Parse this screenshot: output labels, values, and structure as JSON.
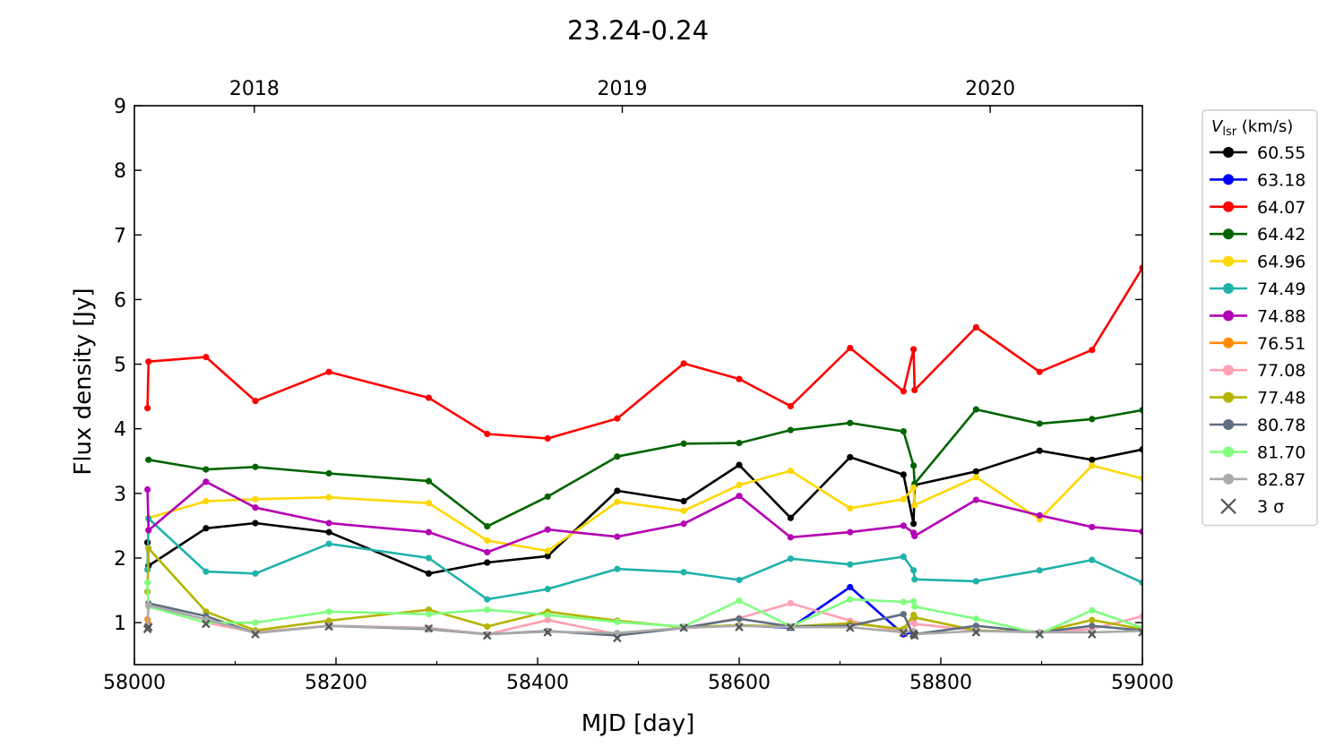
{
  "chart_data": {
    "type": "line",
    "title": "23.24-0.24",
    "xlabel": "MJD [day]",
    "ylabel": "Flux density [Jy]",
    "xlim": [
      58000,
      59000
    ],
    "ylim": [
      0.35,
      9
    ],
    "x_ticks": [
      "58000",
      "58200",
      "58400",
      "58600",
      "58800",
      "59000"
    ],
    "y_ticks": [
      "1",
      "2",
      "3",
      "4",
      "5",
      "6",
      "7",
      "8",
      "9"
    ],
    "top_axis_labels": [
      {
        "label": "2018",
        "mjd": 58119
      },
      {
        "label": "2019",
        "mjd": 58484
      },
      {
        "label": "2020",
        "mjd": 58849
      }
    ],
    "grid": false,
    "legend": {
      "position": "right-top",
      "title_symbol": "V",
      "title_subscript": "lsr",
      "title_unit": "(km/s)",
      "sigma_label": "3 σ"
    },
    "series": [
      {
        "name": "60.55",
        "color": "#000000",
        "x": [
          58013,
          58014,
          58071,
          58120,
          58193,
          58292,
          58350,
          58410,
          58479,
          58545,
          58600,
          58651,
          58710,
          58763,
          58773,
          58774,
          58835,
          58898,
          58950,
          59000
        ],
        "y": [
          2.24,
          1.88,
          2.46,
          2.54,
          2.4,
          1.76,
          1.93,
          2.03,
          3.04,
          2.88,
          3.44,
          2.62,
          3.56,
          3.29,
          2.53,
          3.13,
          3.34,
          3.66,
          3.52,
          3.68
        ]
      },
      {
        "name": "63.18",
        "color": "#0000ff",
        "x": [
          58545,
          58600,
          58651,
          58710,
          58763,
          58773
        ],
        "y": [
          0.92,
          0.96,
          0.92,
          1.55,
          0.82,
          0.85
        ]
      },
      {
        "name": "64.07",
        "color": "#ff0000",
        "x": [
          58013,
          58014,
          58071,
          58120,
          58193,
          58292,
          58350,
          58410,
          58479,
          58545,
          58600,
          58651,
          58710,
          58763,
          58773,
          58774,
          58835,
          58898,
          58950,
          59000
        ],
        "y": [
          4.32,
          5.04,
          5.11,
          4.43,
          4.88,
          4.48,
          3.92,
          3.85,
          4.16,
          5.01,
          4.77,
          4.35,
          5.25,
          4.58,
          5.23,
          4.6,
          5.57,
          4.88,
          5.22,
          6.49
        ]
      },
      {
        "name": "64.42",
        "color": "#006400",
        "x": [
          58014,
          58071,
          58120,
          58193,
          58292,
          58350,
          58410,
          58479,
          58545,
          58600,
          58651,
          58710,
          58763,
          58773,
          58774,
          58835,
          58898,
          58950,
          59000
        ],
        "y": [
          3.52,
          3.37,
          3.41,
          3.31,
          3.19,
          2.49,
          2.95,
          3.57,
          3.77,
          3.78,
          3.98,
          4.09,
          3.96,
          3.43,
          3.15,
          4.3,
          4.08,
          4.15,
          4.29
        ]
      },
      {
        "name": "64.96",
        "color": "#ffd700",
        "x": [
          58014,
          58071,
          58120,
          58193,
          58292,
          58350,
          58410,
          58479,
          58545,
          58600,
          58651,
          58710,
          58763,
          58773,
          58774,
          58835,
          58898,
          58950,
          59000
        ],
        "y": [
          2.62,
          2.88,
          2.91,
          2.94,
          2.85,
          2.27,
          2.11,
          2.87,
          2.73,
          3.13,
          3.35,
          2.77,
          2.91,
          3.09,
          2.82,
          3.25,
          2.6,
          3.43,
          3.23
        ]
      },
      {
        "name": "74.49",
        "color": "#20b2aa",
        "x": [
          58013,
          58014,
          58071,
          58120,
          58193,
          58292,
          58350,
          58410,
          58479,
          58545,
          58600,
          58651,
          58710,
          58763,
          58773,
          58774,
          58835,
          58898,
          58950,
          59000
        ],
        "y": [
          1.82,
          2.61,
          1.79,
          1.76,
          2.22,
          2.0,
          1.36,
          1.52,
          1.83,
          1.78,
          1.66,
          1.99,
          1.9,
          2.02,
          1.81,
          1.67,
          1.64,
          1.81,
          1.97,
          1.62
        ]
      },
      {
        "name": "74.88",
        "color": "#b400b4",
        "x": [
          58013,
          58014,
          58071,
          58120,
          58193,
          58292,
          58350,
          58410,
          58479,
          58545,
          58600,
          58651,
          58710,
          58763,
          58773,
          58774,
          58835,
          58898,
          58950,
          59000
        ],
        "y": [
          3.06,
          2.43,
          3.18,
          2.78,
          2.54,
          2.4,
          2.09,
          2.44,
          2.33,
          2.53,
          2.96,
          2.32,
          2.4,
          2.5,
          2.39,
          2.34,
          2.9,
          2.66,
          2.48,
          2.41
        ]
      },
      {
        "name": "76.51",
        "color": "#ff8c00",
        "x": [
          58013,
          58014
        ],
        "y": [
          1.05,
          0.98
        ]
      },
      {
        "name": "77.08",
        "color": "#ffa0b4",
        "x": [
          58014,
          58071,
          58120,
          58193,
          58292,
          58350,
          58410,
          58479,
          58545,
          58600,
          58651,
          58710,
          58763,
          58773,
          58774,
          58835,
          58898,
          58950,
          59000
        ],
        "y": [
          1.25,
          1.0,
          0.85,
          0.95,
          0.92,
          0.82,
          1.04,
          0.82,
          0.92,
          1.07,
          1.3,
          1.03,
          0.85,
          1.04,
          0.98,
          0.88,
          0.85,
          0.9,
          1.1
        ]
      },
      {
        "name": "77.48",
        "color": "#b4b400",
        "x": [
          58013,
          58014,
          58071,
          58120,
          58193,
          58292,
          58350,
          58410,
          58479,
          58545,
          58600,
          58651,
          58710,
          58763,
          58773,
          58774,
          58835,
          58898,
          58950,
          59000
        ],
        "y": [
          1.48,
          2.15,
          1.17,
          0.88,
          1.03,
          1.2,
          0.94,
          1.17,
          1.03,
          0.93,
          0.96,
          0.94,
          0.99,
          0.9,
          1.12,
          1.08,
          0.88,
          0.85,
          1.04,
          0.9
        ]
      },
      {
        "name": "80.78",
        "color": "#5f6f80",
        "x": [
          58014,
          58071,
          58120,
          58193,
          58292,
          58350,
          58410,
          58479,
          58545,
          58600,
          58651,
          58710,
          58763,
          58773,
          58774,
          58835,
          58898,
          58950,
          59000
        ],
        "y": [
          1.3,
          1.1,
          0.84,
          0.95,
          0.9,
          0.82,
          0.87,
          0.8,
          0.92,
          1.06,
          0.94,
          0.95,
          1.13,
          0.8,
          0.82,
          0.95,
          0.85,
          0.95,
          0.88
        ]
      },
      {
        "name": "81.70",
        "color": "#80ff80",
        "x": [
          58013,
          58014,
          58071,
          58120,
          58193,
          58292,
          58350,
          58410,
          58479,
          58545,
          58600,
          58651,
          58710,
          58763,
          58773,
          58774,
          58835,
          58898,
          58950,
          59000
        ],
        "y": [
          1.62,
          1.25,
          1.0,
          1.0,
          1.17,
          1.13,
          1.2,
          1.12,
          1.01,
          0.94,
          1.34,
          0.94,
          1.36,
          1.32,
          1.33,
          1.25,
          1.06,
          0.83,
          1.19,
          0.92
        ]
      },
      {
        "name": "82.87",
        "color": "#aaaaaa",
        "x": [
          58013,
          58014,
          58071,
          58120,
          58193,
          58292,
          58350,
          58410,
          58479,
          58545,
          58600,
          58651,
          58710,
          58763,
          58773,
          58774,
          58835,
          58898,
          58950,
          59000
        ],
        "y": [
          0.95,
          1.27,
          1.05,
          0.84,
          0.95,
          0.91,
          0.82,
          0.86,
          0.84,
          0.92,
          0.95,
          0.93,
          0.93,
          0.85,
          0.87,
          0.82,
          0.87,
          0.85,
          0.85,
          0.87
        ]
      }
    ],
    "sigma3": {
      "name": "3 σ",
      "color": "#555555",
      "x": [
        58013,
        58014,
        58071,
        58120,
        58193,
        58292,
        58350,
        58410,
        58479,
        58545,
        58600,
        58651,
        58710,
        58763,
        58773,
        58774,
        58835,
        58898,
        58950,
        59000
      ],
      "y": [
        0.9,
        0.93,
        0.98,
        0.82,
        0.94,
        0.91,
        0.8,
        0.85,
        0.76,
        0.92,
        0.93,
        0.93,
        0.92,
        0.84,
        0.83,
        0.8,
        0.85,
        0.82,
        0.82,
        0.85
      ]
    }
  }
}
